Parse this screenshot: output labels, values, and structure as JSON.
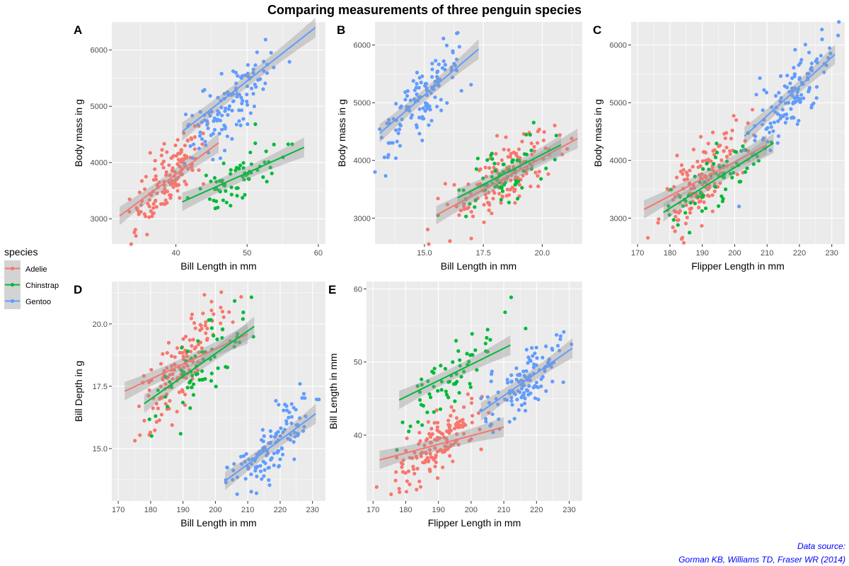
{
  "figure": {
    "title": "Comparing measurements of three penguin species",
    "caption_line1": "Data source:",
    "caption_line2": "Gorman KB, Williams TD, Fraser WR (2014)"
  },
  "legend": {
    "title": "species",
    "items": [
      {
        "label": "Adelie",
        "color": "#F8766D"
      },
      {
        "label": "Chinstrap",
        "color": "#00BA38"
      },
      {
        "label": "Gentoo",
        "color": "#619CFF"
      }
    ]
  },
  "chart_data": [
    {
      "tag": "A",
      "type": "scatter",
      "xlabel": "Bill Length in mm",
      "ylabel": "Body mass in g",
      "xlim": [
        31,
        61
      ],
      "ylim": [
        2550,
        6500
      ],
      "xticks": [
        40,
        50,
        60
      ],
      "xtick_labels": [
        "40",
        "50",
        "60"
      ],
      "yticks": [
        3000,
        4000,
        5000,
        6000
      ],
      "ytick_labels": [
        "3000",
        "4000",
        "5000",
        "6000"
      ],
      "series": [
        {
          "name": "Adelie",
          "cx": 38.8,
          "sx": 2.7,
          "cy": 3700,
          "sy": 460,
          "n": 150,
          "fit": {
            "x": [
              32.1,
              46.0
            ],
            "y": [
              3050,
              4350
            ]
          }
        },
        {
          "name": "Chinstrap",
          "cx": 48.8,
          "sx": 3.3,
          "cy": 3730,
          "sy": 380,
          "n": 68,
          "fit": {
            "x": [
              40.9,
              58.0
            ],
            "y": [
              3300,
              4270
            ]
          }
        },
        {
          "name": "Gentoo",
          "cx": 47.5,
          "sx": 3.1,
          "cy": 5070,
          "sy": 500,
          "n": 124,
          "fit": {
            "x": [
              40.9,
              59.6
            ],
            "y": [
              4550,
              6400
            ]
          }
        }
      ]
    },
    {
      "tag": "B",
      "type": "scatter",
      "xlabel": "Bill Length in mm",
      "ylabel": "Body mass in g",
      "xlim": [
        12.9,
        21.7
      ],
      "ylim": [
        2550,
        6400
      ],
      "xticks": [
        15.0,
        17.5,
        20.0
      ],
      "xtick_labels": [
        "15.0",
        "17.5",
        "20.0"
      ],
      "yticks": [
        3000,
        4000,
        5000,
        6000
      ],
      "ytick_labels": [
        "3000",
        "4000",
        "5000",
        "6000"
      ],
      "series": [
        {
          "name": "Adelie",
          "cx": 18.3,
          "sx": 1.2,
          "cy": 3700,
          "sy": 460,
          "n": 150,
          "fit": {
            "x": [
              15.5,
              21.5
            ],
            "y": [
              3050,
              4380
            ]
          }
        },
        {
          "name": "Chinstrap",
          "cx": 18.4,
          "sx": 1.1,
          "cy": 3730,
          "sy": 380,
          "n": 68,
          "fit": {
            "x": [
              16.4,
              20.8
            ],
            "y": [
              3350,
              4270
            ]
          }
        },
        {
          "name": "Gentoo",
          "cx": 15.0,
          "sx": 1.0,
          "cy": 5070,
          "sy": 500,
          "n": 124,
          "fit": {
            "x": [
              13.1,
              17.3
            ],
            "y": [
              4470,
              5930
            ]
          }
        }
      ]
    },
    {
      "tag": "C",
      "type": "scatter",
      "xlabel": "Flipper Length in mm",
      "ylabel": "Body mass in g",
      "xlim": [
        168,
        234
      ],
      "ylim": [
        2550,
        6400
      ],
      "xticks": [
        170,
        180,
        190,
        200,
        210,
        220,
        230
      ],
      "xtick_labels": [
        "170",
        "180",
        "190",
        "200",
        "210",
        "220",
        "230"
      ],
      "yticks": [
        3000,
        4000,
        5000,
        6000
      ],
      "ytick_labels": [
        "3000",
        "4000",
        "5000",
        "6000"
      ],
      "series": [
        {
          "name": "Adelie",
          "cx": 190,
          "sx": 6.5,
          "cy": 3700,
          "sy": 460,
          "n": 150,
          "fit": {
            "x": [
              172,
              210
            ],
            "y": [
              3150,
              4270
            ]
          }
        },
        {
          "name": "Chinstrap",
          "cx": 196,
          "sx": 7.1,
          "cy": 3730,
          "sy": 380,
          "n": 68,
          "fit": {
            "x": [
              178,
              212
            ],
            "y": [
              3100,
              4300
            ]
          }
        },
        {
          "name": "Gentoo",
          "cx": 217,
          "sx": 6.5,
          "cy": 5070,
          "sy": 500,
          "n": 124,
          "fit": {
            "x": [
              203,
              231
            ],
            "y": [
              4420,
              5840
            ]
          }
        }
      ]
    },
    {
      "tag": "D",
      "type": "scatter",
      "xlabel": "Bill Length in mm",
      "ylabel": "Bill Depth in g",
      "xlim": [
        168,
        234
      ],
      "ylim": [
        12.9,
        21.7
      ],
      "xticks": [
        170,
        180,
        190,
        200,
        210,
        220,
        230
      ],
      "xtick_labels": [
        "170",
        "180",
        "190",
        "200",
        "210",
        "220",
        "230"
      ],
      "yticks": [
        15.0,
        17.5,
        20.0
      ],
      "ytick_labels": [
        "15.0",
        "17.5",
        "20.0"
      ],
      "series": [
        {
          "name": "Adelie",
          "cx": 190,
          "sx": 6.5,
          "cy": 18.3,
          "sy": 1.2,
          "n": 150,
          "fit": {
            "x": [
              172,
              210
            ],
            "y": [
              17.3,
              19.6
            ]
          }
        },
        {
          "name": "Chinstrap",
          "cx": 196,
          "sx": 7.1,
          "cy": 18.4,
          "sy": 1.1,
          "n": 68,
          "fit": {
            "x": [
              178,
              212
            ],
            "y": [
              16.8,
              19.9
            ]
          }
        },
        {
          "name": "Gentoo",
          "cx": 217,
          "sx": 6.5,
          "cy": 15.0,
          "sy": 1.0,
          "n": 124,
          "fit": {
            "x": [
              203,
              231
            ],
            "y": [
              13.7,
              16.4
            ]
          }
        }
      ]
    },
    {
      "tag": "E",
      "type": "scatter",
      "xlabel": "Flipper Length in mm",
      "ylabel": "Bill Length in mm",
      "xlim": [
        168,
        234
      ],
      "ylim": [
        31,
        61
      ],
      "xticks": [
        170,
        180,
        190,
        200,
        210,
        220,
        230
      ],
      "xtick_labels": [
        "170",
        "180",
        "190",
        "200",
        "210",
        "220",
        "230"
      ],
      "yticks": [
        40,
        50,
        60
      ],
      "ytick_labels": [
        "40",
        "50",
        "60"
      ],
      "series": [
        {
          "name": "Adelie",
          "cx": 190,
          "sx": 6.5,
          "cy": 38.8,
          "sy": 2.7,
          "n": 150,
          "fit": {
            "x": [
              172,
              210
            ],
            "y": [
              36.6,
              41.1
            ]
          }
        },
        {
          "name": "Chinstrap",
          "cx": 196,
          "sx": 7.1,
          "cy": 48.8,
          "sy": 3.3,
          "n": 68,
          "fit": {
            "x": [
              178,
              212
            ],
            "y": [
              44.8,
              52.3
            ]
          }
        },
        {
          "name": "Gentoo",
          "cx": 217,
          "sx": 6.5,
          "cy": 47.5,
          "sy": 3.1,
          "n": 124,
          "fit": {
            "x": [
              203,
              231
            ],
            "y": [
              43.2,
              51.9
            ]
          }
        }
      ]
    }
  ]
}
